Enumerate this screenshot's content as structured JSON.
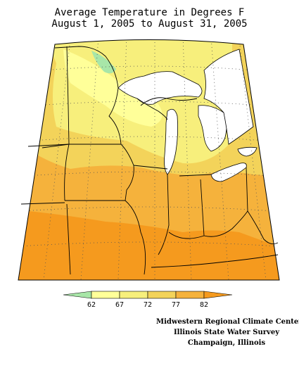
{
  "title": {
    "line1": "Average Temperature in Degrees F",
    "line2": "August 1, 2005 to August 31, 2005"
  },
  "legend": {
    "ticks": [
      "62",
      "67",
      "72",
      "77",
      "82"
    ],
    "colors": [
      "#a8e6a8",
      "#ffff99",
      "#f7ef7c",
      "#f3d35a",
      "#f5b23c",
      "#f59a1e"
    ]
  },
  "credits": [
    "Midwestern Regional Climate Center",
    "Illinois State Water Survey",
    "Champaign, Illinois"
  ],
  "map_colors": {
    "frame_fill": "#f5b23c",
    "lake_fill": "#ffffff",
    "outline": "#000000",
    "grid_dots": "#555555"
  }
}
